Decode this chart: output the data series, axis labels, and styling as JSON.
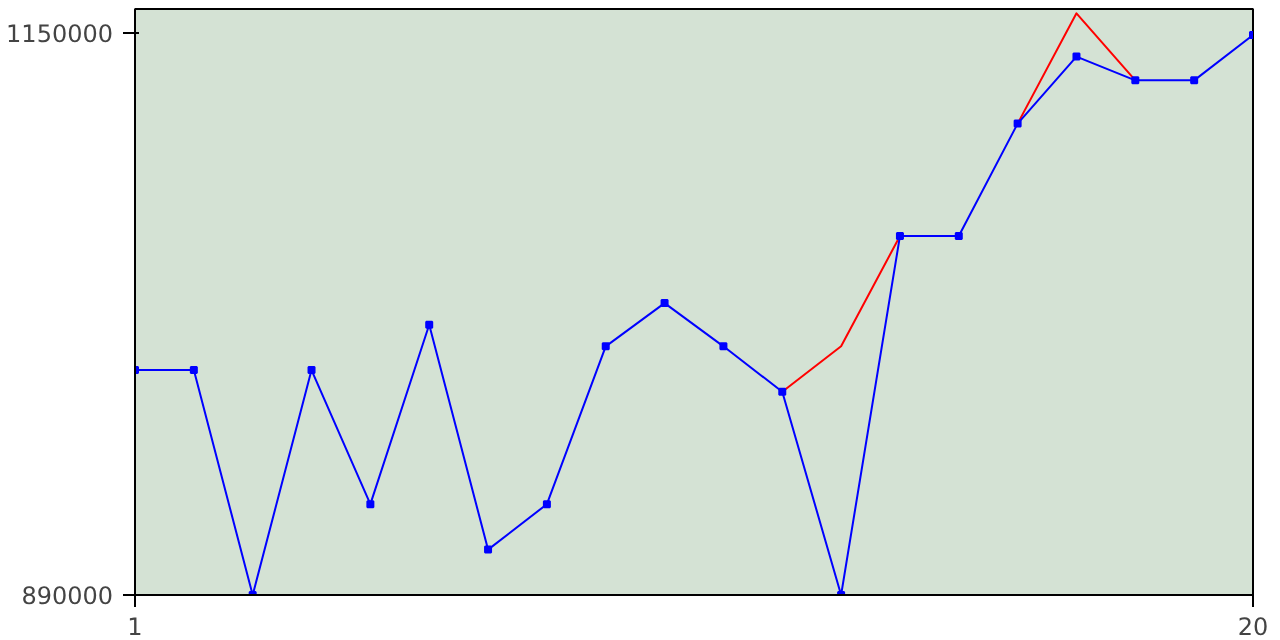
{
  "chart_data": {
    "type": "line",
    "x": [
      1,
      2,
      3,
      4,
      5,
      6,
      7,
      8,
      9,
      10,
      11,
      12,
      13,
      14,
      15,
      16,
      17,
      18,
      19,
      20
    ],
    "series": [
      {
        "color": "#ff0000",
        "marker": "none",
        "values": [
          null,
          null,
          null,
          null,
          null,
          null,
          null,
          null,
          null,
          null,
          null,
          984000,
          1005000,
          1056000,
          null,
          1108000,
          1159000,
          1128000,
          null,
          null
        ]
      },
      {
        "color": "#0000ff",
        "marker": "square",
        "values": [
          994000,
          994000,
          890000,
          994000,
          932000,
          1015000,
          911000,
          932000,
          1005000,
          1025000,
          1005000,
          984000,
          890000,
          1056000,
          1056000,
          1108000,
          1139000,
          1128000,
          1128000,
          1149000
        ]
      }
    ],
    "xlim": [
      1,
      20
    ],
    "xticks": [
      1,
      20
    ],
    "ylim": [
      890000,
      1161000
    ],
    "yticks": [
      890000,
      1150000
    ],
    "grid": false,
    "line_style": "solid"
  }
}
